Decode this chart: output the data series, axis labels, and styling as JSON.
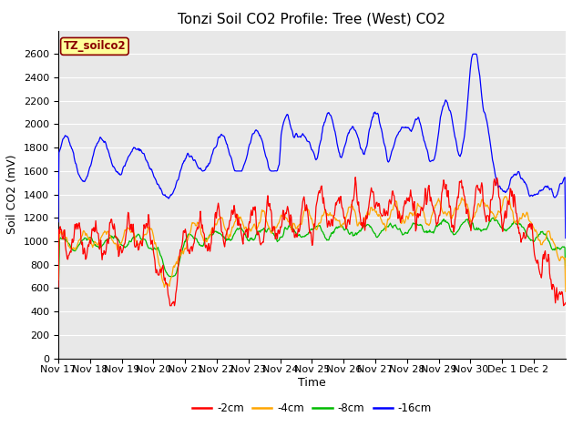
{
  "title": "Tonzi Soil CO2 Profile: Tree (West) CO2",
  "xlabel": "Time",
  "ylabel": "Soil CO2 (mV)",
  "ylim": [
    0,
    2800
  ],
  "yticks": [
    0,
    200,
    400,
    600,
    800,
    1000,
    1200,
    1400,
    1600,
    1800,
    2000,
    2200,
    2400,
    2600
  ],
  "annotation_text": "TZ_soilco2",
  "annotation_color": "#8B0000",
  "annotation_bg": "#FFFF99",
  "line_colors": {
    "-2cm": "#FF0000",
    "-4cm": "#FFA500",
    "-8cm": "#00BB00",
    "-16cm": "#0000FF"
  },
  "background_color": "#E8E8E8",
  "grid_color": "#FFFFFF",
  "x_tick_labels": [
    "Nov 17",
    "Nov 18",
    "Nov 19",
    "Nov 20",
    "Nov 21",
    "Nov 22",
    "Nov 23",
    "Nov 24",
    "Nov 25",
    "Nov 26",
    "Nov 27",
    "Nov 28",
    "Nov 29",
    "Nov 30",
    "Dec 1",
    "Dec 2"
  ],
  "title_fontsize": 11,
  "axis_fontsize": 9,
  "tick_fontsize": 8
}
